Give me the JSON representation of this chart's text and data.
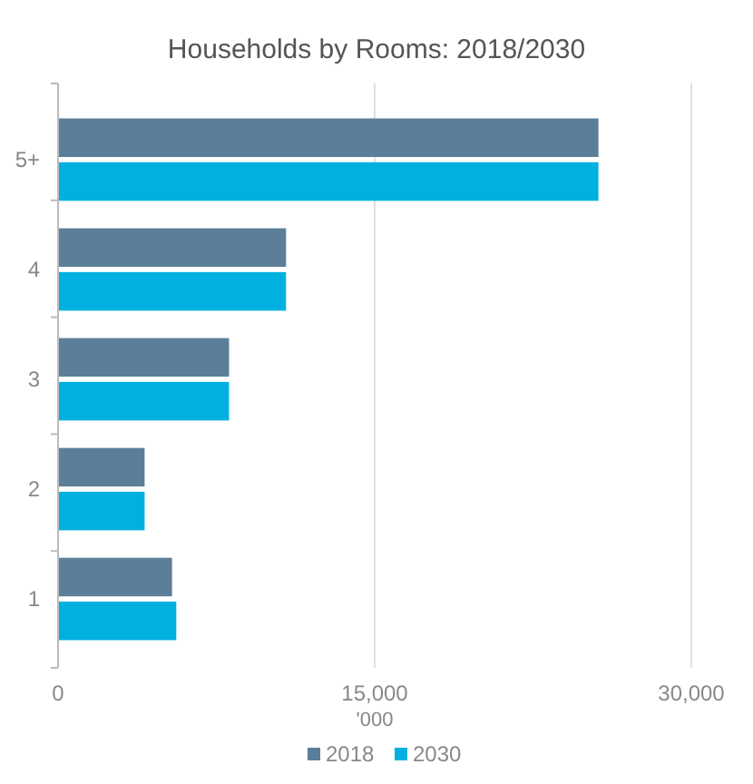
{
  "chart_data": {
    "type": "bar",
    "orientation": "horizontal",
    "title": "Households by Rooms: 2018/2030",
    "xlabel": "'000",
    "categories": [
      "5+",
      "4",
      "3",
      "2",
      "1"
    ],
    "series": [
      {
        "name": "2018",
        "color": "#5b7f99",
        "values": [
          25600,
          10800,
          8100,
          4100,
          5400
        ]
      },
      {
        "name": "2030",
        "color": "#00b0e0",
        "values": [
          25600,
          10800,
          8100,
          4100,
          5600
        ]
      }
    ],
    "xlim": [
      0,
      30000
    ],
    "xticks": [
      0,
      {
        "value": 15000,
        "label": "15,000"
      },
      {
        "value": 30000,
        "label": "30,000"
      }
    ],
    "grid": "x",
    "legend": "bottom"
  }
}
